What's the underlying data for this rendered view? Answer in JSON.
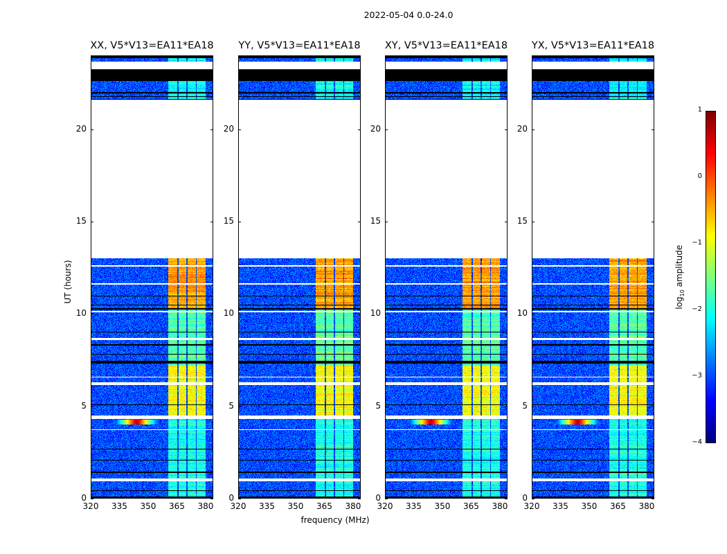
{
  "chart_data": {
    "type": "heatmap",
    "title": "2022-05-04 0.0-24.0",
    "xlabel": "frequency (MHz)",
    "ylabel": "UT (hours)",
    "xlim": [
      320,
      384
    ],
    "ylim": [
      0,
      24
    ],
    "xticks": [
      "320",
      "335",
      "350",
      "365",
      "380"
    ],
    "xtick_values": [
      320,
      335,
      350,
      365,
      380
    ],
    "yticks": [
      "0",
      "5",
      "10",
      "15",
      "20"
    ],
    "ytick_values": [
      0,
      5,
      10,
      15,
      20
    ],
    "colormap": "jet",
    "colorbar": {
      "label_prefix": "log",
      "label_sub": "10",
      "label_suffix": " amplitude",
      "range": [
        -4,
        1
      ],
      "ticks": [
        "1",
        "0",
        "−1",
        "−2",
        "−3",
        "−4"
      ],
      "tick_values": [
        1,
        0,
        -1,
        -2,
        -3,
        -4
      ]
    },
    "panels": [
      {
        "title": "XX, V5*V13=EA11*EA18",
        "rfi_spike": true
      },
      {
        "title": "YY, V5*V13=EA11*EA18",
        "rfi_spike": false
      },
      {
        "title": "XY, V5*V13=EA11*EA18",
        "rfi_spike": true
      },
      {
        "title": "YX, V5*V13=EA11*EA18",
        "rfi_spike": true
      }
    ],
    "background_log_amplitude": -3,
    "signal_subbands_mhz": [
      [
        360.5,
        365.3
      ],
      [
        365.8,
        370.0
      ],
      [
        370.5,
        375.0
      ],
      [
        375.5,
        380.0
      ]
    ],
    "signal_levels_by_time": [
      {
        "hours": [
          0,
          4.3
        ],
        "log_amplitude": -2.0
      },
      {
        "hours": [
          4.5,
          7.2
        ],
        "log_amplitude": -0.9
      },
      {
        "hours": [
          7.2,
          10.3
        ],
        "log_amplitude": -1.7
      },
      {
        "hours": [
          10.3,
          13.0
        ],
        "log_amplitude": -0.4
      },
      {
        "hours": [
          21.6,
          24
        ],
        "log_amplitude": -2.1
      }
    ],
    "blank_hours": [
      [
        0.95,
        1.1
      ],
      [
        4.3,
        4.5
      ],
      [
        6.15,
        6.3
      ],
      [
        6.55,
        6.6
      ],
      [
        8.6,
        8.7
      ],
      [
        12.55,
        12.62
      ],
      [
        11.6,
        11.66
      ],
      [
        10.1,
        10.16
      ],
      [
        3.7,
        3.76
      ],
      [
        13.0,
        21.6
      ],
      [
        23.25,
        23.67
      ]
    ],
    "flagged_hours": [
      [
        0.05,
        0.12
      ],
      [
        0.4,
        0.45
      ],
      [
        1.4,
        1.45
      ],
      [
        2.05,
        2.1
      ],
      [
        2.65,
        2.7
      ],
      [
        5.05,
        5.1
      ],
      [
        7.3,
        7.45
      ],
      [
        7.8,
        7.85
      ],
      [
        8.3,
        8.35
      ],
      [
        9.0,
        9.05
      ],
      [
        10.25,
        10.3
      ],
      [
        10.45,
        10.5
      ],
      [
        10.95,
        11.0
      ],
      [
        21.6,
        21.65
      ],
      [
        21.75,
        21.8
      ],
      [
        21.95,
        22.0
      ],
      [
        22.6,
        23.25
      ],
      [
        23.85,
        24
      ]
    ]
  }
}
